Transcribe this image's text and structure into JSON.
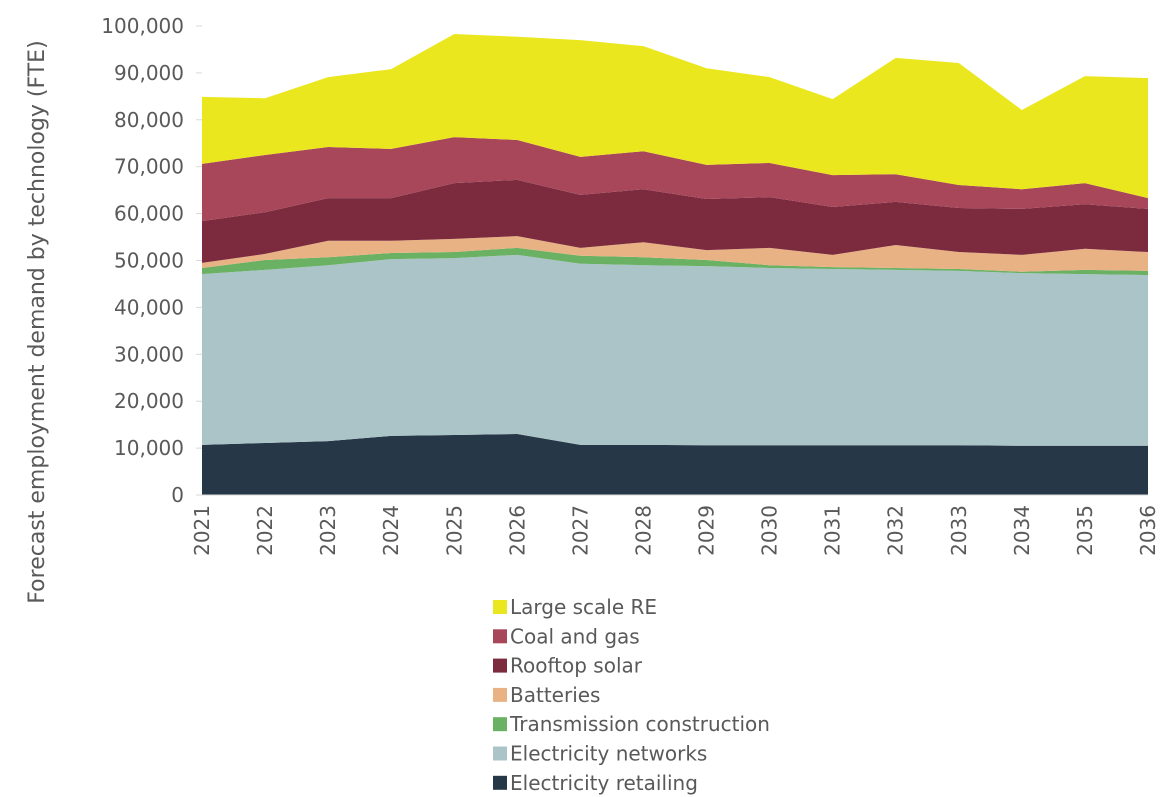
{
  "chart_data": {
    "type": "stacked_area",
    "ylabel": "Forecast employment demand by technology (FTE)",
    "categories": [
      "2021",
      "2022",
      "2023",
      "2024",
      "2025",
      "2026",
      "2027",
      "2028",
      "2029",
      "2030",
      "2031",
      "2032",
      "2033",
      "2034",
      "2035",
      "2036"
    ],
    "ylim": [
      0,
      100000
    ],
    "yticks": [
      0,
      {
        "value": 10000,
        "label": "10,000"
      },
      {
        "value": 20000,
        "label": "20,000"
      },
      {
        "value": 30000,
        "label": "30,000"
      },
      {
        "value": 40000,
        "label": "40,000"
      },
      {
        "value": 50000,
        "label": "50,000"
      },
      {
        "value": 60000,
        "label": "60,000"
      },
      {
        "value": 70000,
        "label": "70,000"
      },
      {
        "value": 80000,
        "label": "80,000"
      },
      {
        "value": 90000,
        "label": "90,000"
      },
      {
        "value": 100000,
        "label": "100,000"
      }
    ],
    "series": [
      {
        "name": "Electricity retailing",
        "color": "#263748",
        "values": [
          10700,
          11100,
          11500,
          12600,
          12800,
          13000,
          10700,
          10700,
          10600,
          10600,
          10600,
          10600,
          10600,
          10500,
          10500,
          10500
        ]
      },
      {
        "name": "Electricity networks",
        "color": "#abc4c8",
        "values": [
          36400,
          36900,
          37500,
          37700,
          37700,
          38200,
          38600,
          38300,
          38200,
          37800,
          37600,
          37400,
          37200,
          36800,
          36600,
          36400
        ]
      },
      {
        "name": "Transmission construction",
        "color": "#6ab164",
        "values": [
          1300,
          2100,
          1700,
          1300,
          1300,
          1500,
          1700,
          1700,
          1300,
          600,
          400,
          400,
          400,
          300,
          900,
          900
        ]
      },
      {
        "name": "Batteries",
        "color": "#e8b284",
        "values": [
          1100,
          1300,
          3500,
          2600,
          2800,
          2500,
          1700,
          3200,
          2100,
          3700,
          2600,
          4900,
          3600,
          3600,
          4500,
          4000
        ]
      },
      {
        "name": "Rooftop solar",
        "color": "#7c2a3e",
        "values": [
          8900,
          8900,
          9100,
          9100,
          11900,
          12000,
          11300,
          11300,
          10900,
          10800,
          10200,
          9200,
          9400,
          9800,
          9500,
          9200
        ]
      },
      {
        "name": "Coal and gas",
        "color": "#a8475a",
        "values": [
          12200,
          12200,
          10900,
          10500,
          9800,
          8500,
          8100,
          8100,
          7300,
          7300,
          6800,
          5900,
          4900,
          4200,
          4500,
          2300
        ]
      },
      {
        "name": "Large scale RE",
        "color": "#ebe71f",
        "values": [
          14300,
          12100,
          14900,
          17000,
          22000,
          22000,
          24900,
          22400,
          20600,
          18300,
          16200,
          24800,
          26000,
          16900,
          22800,
          25600
        ]
      }
    ]
  }
}
